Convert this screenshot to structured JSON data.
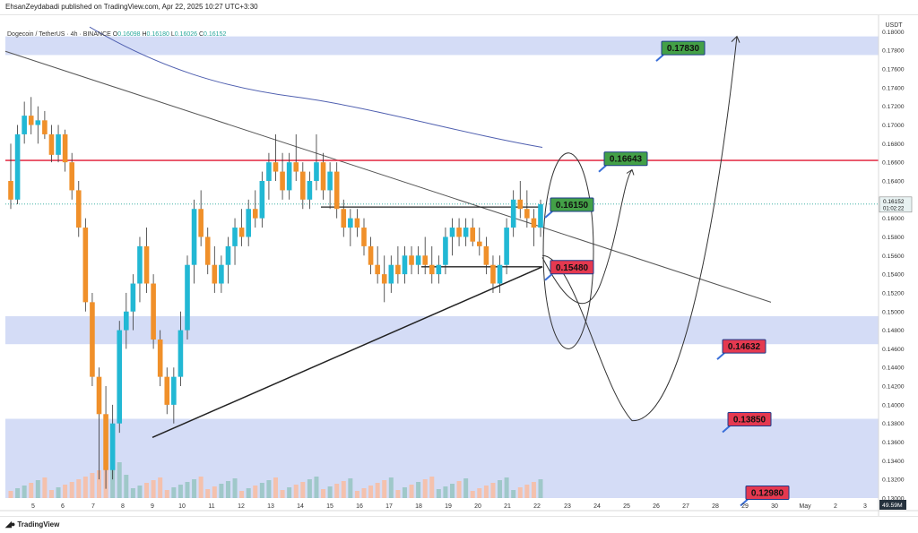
{
  "publisher_line": "EhsanZeydabadi published on TradingView.com, Apr 22, 2025 10:27 UTC+3:30",
  "symbol": {
    "name": "Dogecoin / TetherUS · 4h · BINANCE",
    "o_label": "O",
    "o_value": "0.16098",
    "h_label": "H",
    "h_value": "0.16180",
    "l_label": "L",
    "l_value": "0.16026",
    "c_label": "C",
    "c_value": "0.16152"
  },
  "price_axis_unit": "USDT",
  "current_price": {
    "value": "0.16152",
    "countdown": "01:02:22"
  },
  "volume_badge": "49.59M",
  "footer": {
    "logo": "TradingView"
  },
  "colors": {
    "bull": "#22b8d4",
    "bear": "#f0902a",
    "resistance": "#e53950",
    "zone": "#ccd6f5",
    "vol_bull": "#9fc8c9",
    "vol_bear": "#f4c1ad",
    "label_green": "#43a047",
    "label_red": "#e53950",
    "ma": "#5060b0"
  },
  "chart_data": {
    "type": "candlestick",
    "interval": "4h",
    "ylim": [
      0.13,
      0.181
    ],
    "x_ticks": [
      "5",
      "6",
      "7",
      "8",
      "9",
      "10",
      "11",
      "12",
      "13",
      "14",
      "15",
      "16",
      "17",
      "18",
      "19",
      "20",
      "21",
      "22",
      "23",
      "24",
      "25",
      "26",
      "27",
      "28",
      "29",
      "30",
      "May",
      "2",
      "3"
    ],
    "y_ticks": [
      "0.13000",
      "0.13200",
      "0.13400",
      "0.13600",
      "0.13800",
      "0.14000",
      "0.14200",
      "0.14400",
      "0.14600",
      "0.14800",
      "0.15000",
      "0.15200",
      "0.15400",
      "0.15600",
      "0.15800",
      "0.16000",
      "0.16200",
      "0.16400",
      "0.16600",
      "0.16800",
      "0.17000",
      "0.17200",
      "0.17400",
      "0.17600",
      "0.17800",
      "0.18000"
    ],
    "resistance_level": 0.1662,
    "zones": [
      [
        0.1775,
        0.1795
      ],
      [
        0.1465,
        0.1495
      ],
      [
        0.13,
        0.1385
      ]
    ],
    "labels": [
      {
        "text": "0.17830",
        "price": 0.1783,
        "kind": "target"
      },
      {
        "text": "0.16643",
        "price": 0.16643,
        "kind": "target"
      },
      {
        "text": "0.16150",
        "price": 0.1615,
        "kind": "target"
      },
      {
        "text": "0.15480",
        "price": 0.1548,
        "kind": "level"
      },
      {
        "text": "0.14632",
        "price": 0.14632,
        "kind": "level"
      },
      {
        "text": "0.13850",
        "price": 0.1385,
        "kind": "level"
      },
      {
        "text": "0.12980",
        "price": 0.1298,
        "kind": "level"
      }
    ],
    "candles": [
      [
        0.164,
        0.168,
        0.161,
        0.162
      ],
      [
        0.162,
        0.17,
        0.1615,
        0.169
      ],
      [
        0.169,
        0.1725,
        0.168,
        0.171
      ],
      [
        0.171,
        0.173,
        0.169,
        0.17
      ],
      [
        0.17,
        0.172,
        0.168,
        0.1705
      ],
      [
        0.1705,
        0.1715,
        0.1685,
        0.169
      ],
      [
        0.169,
        0.17,
        0.166,
        0.1668
      ],
      [
        0.1668,
        0.17,
        0.166,
        0.169
      ],
      [
        0.169,
        0.1695,
        0.165,
        0.166
      ],
      [
        0.166,
        0.167,
        0.162,
        0.163
      ],
      [
        0.163,
        0.164,
        0.158,
        0.159
      ],
      [
        0.159,
        0.16,
        0.15,
        0.151
      ],
      [
        0.151,
        0.152,
        0.142,
        0.143
      ],
      [
        0.143,
        0.144,
        0.132,
        0.139
      ],
      [
        0.139,
        0.142,
        0.131,
        0.133
      ],
      [
        0.133,
        0.14,
        0.132,
        0.138
      ],
      [
        0.138,
        0.149,
        0.137,
        0.148
      ],
      [
        0.148,
        0.152,
        0.146,
        0.15
      ],
      [
        0.15,
        0.154,
        0.148,
        0.153
      ],
      [
        0.153,
        0.158,
        0.151,
        0.157
      ],
      [
        0.157,
        0.159,
        0.152,
        0.153
      ],
      [
        0.153,
        0.154,
        0.146,
        0.147
      ],
      [
        0.147,
        0.148,
        0.142,
        0.143
      ],
      [
        0.143,
        0.144,
        0.139,
        0.14
      ],
      [
        0.14,
        0.144,
        0.138,
        0.143
      ],
      [
        0.143,
        0.15,
        0.142,
        0.148
      ],
      [
        0.148,
        0.156,
        0.147,
        0.155
      ],
      [
        0.155,
        0.162,
        0.153,
        0.161
      ],
      [
        0.161,
        0.163,
        0.157,
        0.158
      ],
      [
        0.158,
        0.159,
        0.154,
        0.155
      ],
      [
        0.155,
        0.157,
        0.152,
        0.153
      ],
      [
        0.153,
        0.156,
        0.152,
        0.155
      ],
      [
        0.155,
        0.158,
        0.153,
        0.157
      ],
      [
        0.157,
        0.16,
        0.155,
        0.159
      ],
      [
        0.159,
        0.161,
        0.157,
        0.158
      ],
      [
        0.158,
        0.162,
        0.157,
        0.161
      ],
      [
        0.161,
        0.163,
        0.159,
        0.16
      ],
      [
        0.16,
        0.165,
        0.159,
        0.164
      ],
      [
        0.164,
        0.167,
        0.162,
        0.166
      ],
      [
        0.166,
        0.169,
        0.164,
        0.165
      ],
      [
        0.165,
        0.167,
        0.162,
        0.163
      ],
      [
        0.163,
        0.167,
        0.162,
        0.166
      ],
      [
        0.166,
        0.169,
        0.164,
        0.165
      ],
      [
        0.165,
        0.166,
        0.161,
        0.162
      ],
      [
        0.162,
        0.165,
        0.161,
        0.164
      ],
      [
        0.164,
        0.169,
        0.163,
        0.166
      ],
      [
        0.166,
        0.167,
        0.162,
        0.163
      ],
      [
        0.163,
        0.166,
        0.161,
        0.165
      ],
      [
        0.165,
        0.166,
        0.16,
        0.161
      ],
      [
        0.161,
        0.162,
        0.158,
        0.159
      ],
      [
        0.159,
        0.161,
        0.157,
        0.16
      ],
      [
        0.16,
        0.161,
        0.158,
        0.159
      ],
      [
        0.159,
        0.16,
        0.156,
        0.157
      ],
      [
        0.157,
        0.158,
        0.154,
        0.155
      ],
      [
        0.155,
        0.157,
        0.153,
        0.154
      ],
      [
        0.154,
        0.156,
        0.151,
        0.153
      ],
      [
        0.153,
        0.156,
        0.152,
        0.155
      ],
      [
        0.155,
        0.157,
        0.153,
        0.154
      ],
      [
        0.154,
        0.157,
        0.153,
        0.156
      ],
      [
        0.156,
        0.157,
        0.154,
        0.155
      ],
      [
        0.155,
        0.157,
        0.154,
        0.156
      ],
      [
        0.156,
        0.158,
        0.154,
        0.155
      ],
      [
        0.155,
        0.157,
        0.153,
        0.154
      ],
      [
        0.154,
        0.156,
        0.153,
        0.155
      ],
      [
        0.155,
        0.159,
        0.154,
        0.158
      ],
      [
        0.158,
        0.16,
        0.156,
        0.159
      ],
      [
        0.159,
        0.16,
        0.157,
        0.158
      ],
      [
        0.158,
        0.16,
        0.157,
        0.159
      ],
      [
        0.159,
        0.16,
        0.157,
        0.1575
      ],
      [
        0.1575,
        0.159,
        0.156,
        0.157
      ],
      [
        0.157,
        0.158,
        0.154,
        0.155
      ],
      [
        0.155,
        0.156,
        0.152,
        0.153
      ],
      [
        0.153,
        0.156,
        0.152,
        0.155
      ],
      [
        0.155,
        0.16,
        0.154,
        0.159
      ],
      [
        0.159,
        0.163,
        0.158,
        0.162
      ],
      [
        0.162,
        0.164,
        0.16,
        0.161
      ],
      [
        0.161,
        0.163,
        0.159,
        0.16
      ],
      [
        0.16,
        0.161,
        0.157,
        0.159
      ],
      [
        0.159,
        0.162,
        0.158,
        0.1615
      ]
    ]
  }
}
